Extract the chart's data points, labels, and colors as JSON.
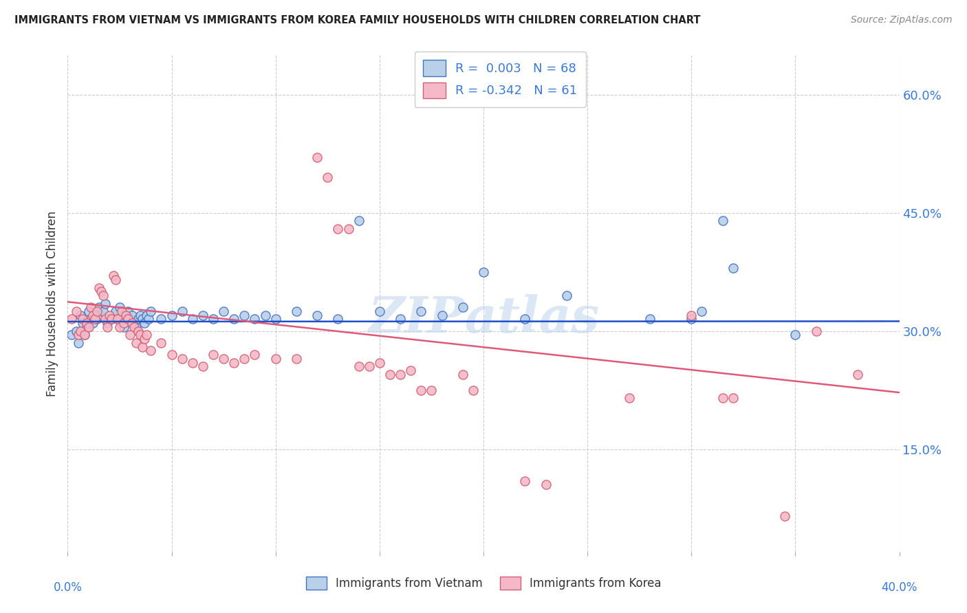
{
  "title": "IMMIGRANTS FROM VIETNAM VS IMMIGRANTS FROM KOREA FAMILY HOUSEHOLDS WITH CHILDREN CORRELATION CHART",
  "source": "Source: ZipAtlas.com",
  "ylabel": "Family Households with Children",
  "ytick_labels": [
    "15.0%",
    "30.0%",
    "45.0%",
    "60.0%"
  ],
  "ytick_values": [
    0.15,
    0.3,
    0.45,
    0.6
  ],
  "xlim": [
    0.0,
    0.4
  ],
  "ylim": [
    0.02,
    0.65
  ],
  "vietnam_color": "#b8d0e8",
  "vietnam_edge_color": "#4472c4",
  "korea_color": "#f4b8c8",
  "korea_edge_color": "#d06070",
  "vietnam_line_color": "#1f4fc8",
  "korea_line_color": "#e05878",
  "watermark": "ZIPAtlas",
  "grid_color": "#cccccc",
  "vietnam_points": [
    [
      0.002,
      0.295
    ],
    [
      0.004,
      0.3
    ],
    [
      0.005,
      0.285
    ],
    [
      0.006,
      0.32
    ],
    [
      0.007,
      0.31
    ],
    [
      0.008,
      0.295
    ],
    [
      0.009,
      0.305
    ],
    [
      0.01,
      0.325
    ],
    [
      0.011,
      0.315
    ],
    [
      0.012,
      0.31
    ],
    [
      0.013,
      0.32
    ],
    [
      0.014,
      0.315
    ],
    [
      0.015,
      0.33
    ],
    [
      0.016,
      0.32
    ],
    [
      0.017,
      0.325
    ],
    [
      0.018,
      0.335
    ],
    [
      0.019,
      0.31
    ],
    [
      0.02,
      0.315
    ],
    [
      0.021,
      0.315
    ],
    [
      0.022,
      0.32
    ],
    [
      0.023,
      0.325
    ],
    [
      0.024,
      0.315
    ],
    [
      0.025,
      0.33
    ],
    [
      0.026,
      0.31
    ],
    [
      0.027,
      0.305
    ],
    [
      0.028,
      0.32
    ],
    [
      0.029,
      0.325
    ],
    [
      0.03,
      0.315
    ],
    [
      0.031,
      0.32
    ],
    [
      0.032,
      0.31
    ],
    [
      0.033,
      0.305
    ],
    [
      0.034,
      0.315
    ],
    [
      0.035,
      0.32
    ],
    [
      0.036,
      0.315
    ],
    [
      0.037,
      0.31
    ],
    [
      0.038,
      0.32
    ],
    [
      0.039,
      0.315
    ],
    [
      0.04,
      0.325
    ],
    [
      0.045,
      0.315
    ],
    [
      0.05,
      0.32
    ],
    [
      0.055,
      0.325
    ],
    [
      0.06,
      0.315
    ],
    [
      0.065,
      0.32
    ],
    [
      0.07,
      0.315
    ],
    [
      0.075,
      0.325
    ],
    [
      0.08,
      0.315
    ],
    [
      0.085,
      0.32
    ],
    [
      0.09,
      0.315
    ],
    [
      0.095,
      0.32
    ],
    [
      0.1,
      0.315
    ],
    [
      0.11,
      0.325
    ],
    [
      0.12,
      0.32
    ],
    [
      0.13,
      0.315
    ],
    [
      0.14,
      0.44
    ],
    [
      0.15,
      0.325
    ],
    [
      0.16,
      0.315
    ],
    [
      0.17,
      0.325
    ],
    [
      0.18,
      0.32
    ],
    [
      0.19,
      0.33
    ],
    [
      0.2,
      0.375
    ],
    [
      0.22,
      0.315
    ],
    [
      0.24,
      0.345
    ],
    [
      0.28,
      0.315
    ],
    [
      0.3,
      0.315
    ],
    [
      0.305,
      0.325
    ],
    [
      0.315,
      0.44
    ],
    [
      0.32,
      0.38
    ],
    [
      0.35,
      0.295
    ]
  ],
  "korea_points": [
    [
      0.002,
      0.315
    ],
    [
      0.004,
      0.325
    ],
    [
      0.005,
      0.295
    ],
    [
      0.006,
      0.3
    ],
    [
      0.007,
      0.315
    ],
    [
      0.008,
      0.295
    ],
    [
      0.009,
      0.31
    ],
    [
      0.01,
      0.305
    ],
    [
      0.011,
      0.33
    ],
    [
      0.012,
      0.32
    ],
    [
      0.013,
      0.315
    ],
    [
      0.014,
      0.325
    ],
    [
      0.015,
      0.355
    ],
    [
      0.016,
      0.35
    ],
    [
      0.017,
      0.345
    ],
    [
      0.018,
      0.315
    ],
    [
      0.019,
      0.305
    ],
    [
      0.02,
      0.32
    ],
    [
      0.021,
      0.315
    ],
    [
      0.022,
      0.37
    ],
    [
      0.023,
      0.365
    ],
    [
      0.024,
      0.315
    ],
    [
      0.025,
      0.305
    ],
    [
      0.026,
      0.325
    ],
    [
      0.027,
      0.31
    ],
    [
      0.028,
      0.32
    ],
    [
      0.029,
      0.315
    ],
    [
      0.03,
      0.295
    ],
    [
      0.031,
      0.31
    ],
    [
      0.032,
      0.305
    ],
    [
      0.033,
      0.285
    ],
    [
      0.034,
      0.3
    ],
    [
      0.035,
      0.295
    ],
    [
      0.036,
      0.28
    ],
    [
      0.037,
      0.29
    ],
    [
      0.038,
      0.295
    ],
    [
      0.04,
      0.275
    ],
    [
      0.045,
      0.285
    ],
    [
      0.05,
      0.27
    ],
    [
      0.055,
      0.265
    ],
    [
      0.06,
      0.26
    ],
    [
      0.065,
      0.255
    ],
    [
      0.07,
      0.27
    ],
    [
      0.075,
      0.265
    ],
    [
      0.08,
      0.26
    ],
    [
      0.085,
      0.265
    ],
    [
      0.09,
      0.27
    ],
    [
      0.1,
      0.265
    ],
    [
      0.11,
      0.265
    ],
    [
      0.12,
      0.52
    ],
    [
      0.125,
      0.495
    ],
    [
      0.13,
      0.43
    ],
    [
      0.135,
      0.43
    ],
    [
      0.14,
      0.255
    ],
    [
      0.145,
      0.255
    ],
    [
      0.15,
      0.26
    ],
    [
      0.155,
      0.245
    ],
    [
      0.16,
      0.245
    ],
    [
      0.165,
      0.25
    ],
    [
      0.17,
      0.225
    ],
    [
      0.175,
      0.225
    ],
    [
      0.19,
      0.245
    ],
    [
      0.195,
      0.225
    ],
    [
      0.22,
      0.11
    ],
    [
      0.23,
      0.105
    ],
    [
      0.27,
      0.215
    ],
    [
      0.3,
      0.32
    ],
    [
      0.315,
      0.215
    ],
    [
      0.32,
      0.215
    ],
    [
      0.345,
      0.065
    ],
    [
      0.36,
      0.3
    ],
    [
      0.38,
      0.245
    ]
  ]
}
